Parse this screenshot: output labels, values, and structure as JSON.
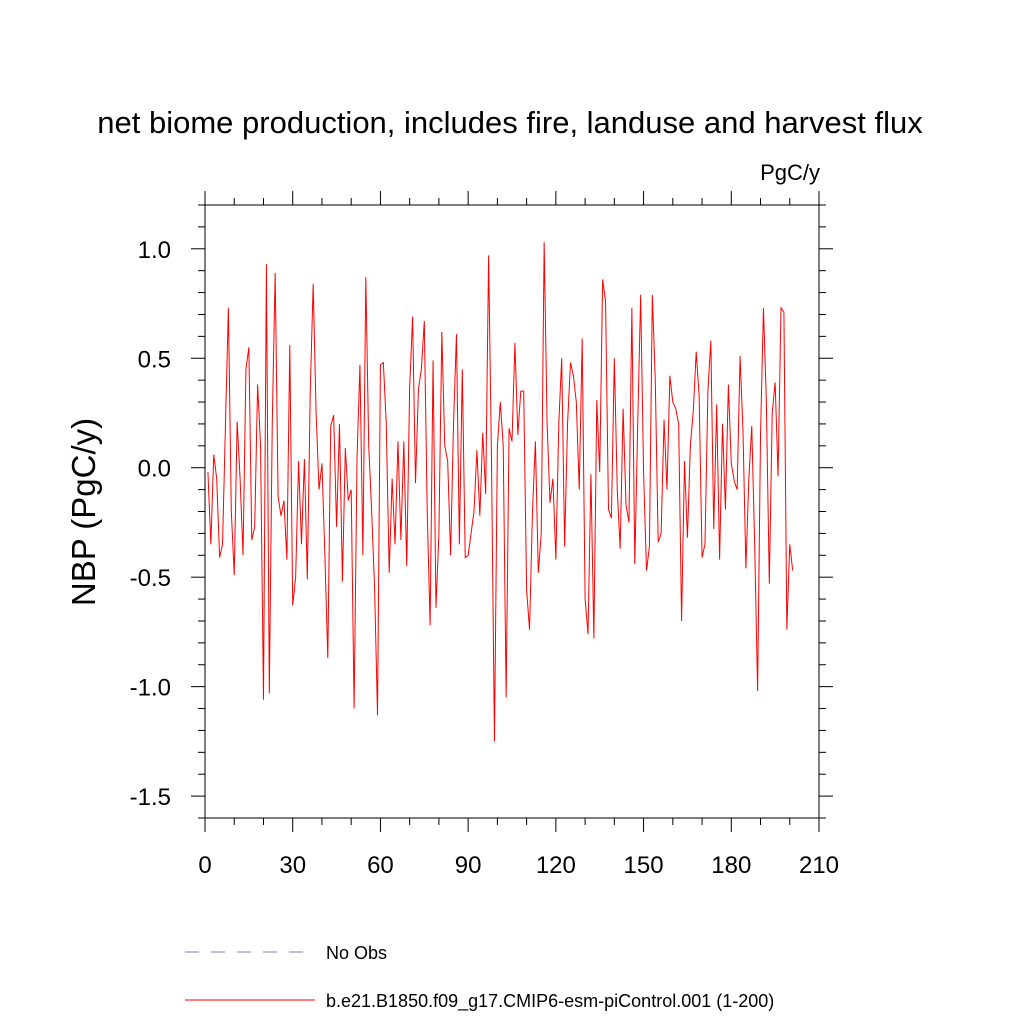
{
  "chart_data": {
    "type": "line",
    "title": "net biome production, includes fire, landuse and harvest flux",
    "units": "PgC/y",
    "ylabel": "NBP  (PgC/y)",
    "xlabel": "",
    "xlim": [
      0,
      210
    ],
    "ylim": [
      -1.6,
      1.2
    ],
    "x_ticks": [
      0,
      30,
      60,
      90,
      120,
      150,
      180,
      210
    ],
    "x_tick_labels": [
      "0",
      "30",
      "60",
      "90",
      "120",
      "150",
      "180",
      "210"
    ],
    "y_ticks": [
      -1.5,
      -1.0,
      -0.5,
      0.0,
      0.5,
      1.0
    ],
    "y_tick_labels": [
      "-1.5",
      "-1.0",
      "-0.5",
      "0.0",
      "0.5",
      "1.0"
    ],
    "legend": [
      {
        "label": "No Obs",
        "color": "#8080c0",
        "style": "dashed"
      },
      {
        "label": "b.e21.B1850.f09_g17.CMIP6-esm-piControl.001 (1-200)",
        "color": "#ff0000",
        "style": "solid"
      }
    ],
    "series": [
      {
        "name": "b.e21.B1850.f09_g17.CMIP6-esm-piControl.001 (1-200)",
        "color": "#ff0000",
        "x_start": 1,
        "values": [
          -0.02,
          -0.35,
          0.06,
          -0.05,
          -0.41,
          -0.35,
          0.2,
          0.73,
          -0.2,
          -0.49,
          0.21,
          -0.05,
          -0.4,
          0.45,
          0.55,
          -0.33,
          -0.27,
          0.38,
          0.1,
          -1.06,
          0.93,
          -1.03,
          0.2,
          0.89,
          -0.13,
          -0.22,
          -0.15,
          -0.42,
          0.56,
          -0.63,
          -0.5,
          0.03,
          -0.35,
          0.04,
          -0.51,
          0.35,
          0.84,
          0.25,
          -0.1,
          0.02,
          -0.4,
          -0.87,
          0.19,
          0.24,
          -0.27,
          0.2,
          -0.52,
          0.09,
          -0.15,
          -0.1,
          -1.1,
          0.05,
          0.47,
          -0.4,
          0.87,
          0.1,
          -0.2,
          -0.55,
          -1.13,
          0.47,
          0.48,
          0.2,
          -0.48,
          -0.05,
          -0.35,
          0.12,
          -0.33,
          0.12,
          -0.45,
          0.37,
          0.69,
          -0.07,
          0.36,
          0.45,
          0.67,
          -0.2,
          -0.72,
          0.49,
          -0.64,
          -0.3,
          0.62,
          0.1,
          0.03,
          -0.4,
          0.2,
          0.61,
          -0.35,
          0.45,
          -0.41,
          -0.4,
          -0.3,
          -0.2,
          0.08,
          -0.22,
          0.16,
          -0.12,
          0.97,
          0.02,
          -1.25,
          0.1,
          0.3,
          0.1,
          -1.05,
          0.18,
          0.12,
          0.57,
          0.15,
          0.35,
          0.35,
          -0.56,
          -0.74,
          -0.2,
          0.12,
          -0.48,
          -0.3,
          1.03,
          0.2,
          -0.16,
          -0.05,
          -0.42,
          0.2,
          0.5,
          -0.36,
          0.2,
          0.48,
          0.42,
          0.3,
          -0.1,
          0.59,
          -0.6,
          -0.76,
          -0.03,
          -0.78,
          0.31,
          -0.02,
          0.86,
          0.76,
          -0.19,
          -0.23,
          0.5,
          -0.1,
          -0.37,
          0.27,
          -0.17,
          -0.25,
          0.73,
          -0.44,
          0.2,
          0.79,
          -0.02,
          -0.47,
          -0.36,
          0.79,
          0.4,
          -0.34,
          -0.3,
          0.22,
          -0.1,
          0.42,
          0.3,
          0.27,
          0.2,
          -0.7,
          0.03,
          -0.32,
          0.1,
          0.26,
          0.53,
          0.33,
          -0.41,
          -0.35,
          0.35,
          0.58,
          -0.28,
          0.29,
          -0.42,
          0.2,
          -0.19,
          0.38,
          0.02,
          -0.06,
          -0.1,
          0.51,
          0.17,
          -0.46,
          -0.05,
          0.19,
          -0.35,
          -1.02,
          0.15,
          0.73,
          0.3,
          -0.53,
          0.25,
          0.39,
          -0.04,
          0.73,
          0.71,
          -0.74,
          -0.35,
          -0.47
        ]
      }
    ]
  }
}
